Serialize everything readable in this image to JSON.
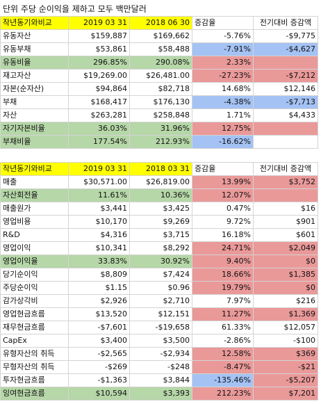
{
  "title": "단위 주당 순이익을 제하고 모두 백만달러",
  "colors": {
    "yellow": "#ffff00",
    "green": "#b6d7a8",
    "red": "#ea9999",
    "blue": "#a4c2f4"
  },
  "table1": {
    "header": [
      "작년동기와비교",
      "2019 03 31",
      "2018 06 30",
      "증감율",
      "전기대비 증감액"
    ],
    "header_fills": [
      "yellow",
      "yellow",
      "yellow",
      "",
      ""
    ],
    "rows": [
      {
        "label": "유동자산",
        "a": "$159,887",
        "b": "$169,662",
        "pct": "-5.76%",
        "diff": "-$9,775",
        "fills": [
          "",
          "",
          "",
          "",
          ""
        ]
      },
      {
        "label": "유동부채",
        "a": "$53,861",
        "b": "$58,488",
        "pct": "-7.91%",
        "diff": "-$4,627",
        "fills": [
          "",
          "",
          "",
          "blue",
          "blue"
        ]
      },
      {
        "label": "유동비율",
        "a": "296.85%",
        "b": "290.08%",
        "pct": "2.33%",
        "diff": "",
        "fills": [
          "green",
          "green",
          "green",
          "red",
          "red"
        ]
      },
      {
        "label": "재고자산",
        "a": "$19,269.00",
        "b": "$26,481.00",
        "pct": "-27.23%",
        "diff": "-$7,212",
        "fills": [
          "",
          "",
          "",
          "red",
          "red"
        ]
      },
      {
        "label": "자본(순자산)",
        "a": "$94,864",
        "b": "$82,718",
        "pct": "14.68%",
        "diff": "$12,146",
        "fills": [
          "",
          "",
          "",
          "",
          ""
        ]
      },
      {
        "label": "부채",
        "a": "$168,417",
        "b": "$176,130",
        "pct": "-4.38%",
        "diff": "-$7,713",
        "fills": [
          "",
          "",
          "",
          "blue",
          "blue"
        ]
      },
      {
        "label": "자산",
        "a": "$263,281",
        "b": "$258,848",
        "pct": "1.71%",
        "diff": "$4,433",
        "fills": [
          "",
          "",
          "",
          "",
          ""
        ]
      },
      {
        "label": "자기자본비율",
        "a": "36.03%",
        "b": "31.96%",
        "pct": "12.75%",
        "diff": "",
        "fills": [
          "green",
          "green",
          "green",
          "red",
          "red"
        ]
      },
      {
        "label": "부채비율",
        "a": "177.54%",
        "b": "212.93%",
        "pct": "-16.62%",
        "diff": "",
        "fills": [
          "green",
          "green",
          "green",
          "blue",
          ""
        ]
      }
    ]
  },
  "table2": {
    "header": [
      "작년동기와비교",
      "2019 03 31",
      "2018 03 31",
      "증감율",
      "전기대비 증감액"
    ],
    "header_fills": [
      "yellow",
      "yellow",
      "yellow",
      "",
      ""
    ],
    "rows": [
      {
        "label": "매출",
        "a": "$30,571.00",
        "b": "$26,819.00",
        "pct": "13.99%",
        "diff": "$3,752",
        "fills": [
          "",
          "",
          "",
          "red",
          "red"
        ]
      },
      {
        "label": "자산회전율",
        "a": "11.61%",
        "b": "10.36%",
        "pct": "12.07%",
        "diff": "",
        "fills": [
          "green",
          "green",
          "green",
          "red",
          "red"
        ]
      },
      {
        "label": "매출원가",
        "a": "$3,441",
        "b": "$3,425",
        "pct": "0.47%",
        "diff": "$16",
        "fills": [
          "",
          "",
          "",
          "",
          ""
        ]
      },
      {
        "label": "영업비용",
        "a": "$10,170",
        "b": "$9,269",
        "pct": "9.72%",
        "diff": "$901",
        "fills": [
          "",
          "",
          "",
          "",
          ""
        ]
      },
      {
        "label": "R&D",
        "a": "$4,316",
        "b": "$3,715",
        "pct": "16.18%",
        "diff": "$601",
        "fills": [
          "",
          "",
          "",
          "",
          ""
        ]
      },
      {
        "label": "영업이익",
        "a": "$10,341",
        "b": "$8,292",
        "pct": "24.71%",
        "diff": "$2,049",
        "fills": [
          "",
          "",
          "",
          "red",
          "red"
        ]
      },
      {
        "label": "영업이익율",
        "a": "33.83%",
        "b": "30.92%",
        "pct": "9.40%",
        "diff": "$0",
        "fills": [
          "green",
          "green",
          "green",
          "red",
          "red"
        ]
      },
      {
        "label": "당기순이익",
        "a": "$8,809",
        "b": "$7,424",
        "pct": "18.66%",
        "diff": "$1,385",
        "fills": [
          "",
          "",
          "",
          "red",
          "red"
        ]
      },
      {
        "label": "주당순이익",
        "a": "$1.15",
        "b": "$0.96",
        "pct": "19.79%",
        "diff": "$0",
        "fills": [
          "",
          "",
          "",
          "red",
          "red"
        ]
      },
      {
        "label": "감가상각비",
        "a": "$2,926",
        "b": "$2,710",
        "pct": "7.97%",
        "diff": "$216",
        "fills": [
          "",
          "",
          "",
          "",
          ""
        ]
      },
      {
        "label": "영업현금흐름",
        "a": "$13,520",
        "b": "$12,151",
        "pct": "11.27%",
        "diff": "$1,369",
        "fills": [
          "",
          "",
          "",
          "red",
          "red"
        ]
      },
      {
        "label": "재무현금흐름",
        "a": "-$7,601",
        "b": "-$19,658",
        "pct": "61.33%",
        "diff": "$12,057",
        "fills": [
          "",
          "",
          "",
          "",
          ""
        ]
      },
      {
        "label": "CapEx",
        "a": "$3,400",
        "b": "$3,500",
        "pct": "-2.86%",
        "diff": "-$100",
        "fills": [
          "",
          "",
          "",
          "",
          ""
        ]
      },
      {
        "label": "유형자산의 취득",
        "a": "-$2,565",
        "b": "-$2,934",
        "pct": "12.58%",
        "diff": "$369",
        "fills": [
          "",
          "",
          "",
          "red",
          "red"
        ]
      },
      {
        "label": "무형자산의 취득",
        "a": "-$269",
        "b": "-$248",
        "pct": "-8.47%",
        "diff": "-$21",
        "fills": [
          "",
          "",
          "",
          "red",
          "red"
        ]
      },
      {
        "label": "투자현금흐름",
        "a": "-$1,363",
        "b": "$3,844",
        "pct": "-135.46%",
        "diff": "-$5,207",
        "fills": [
          "",
          "",
          "",
          "blue",
          "red"
        ]
      },
      {
        "label": "잉여현금흐름",
        "a": "$10,594",
        "b": "$3,393",
        "pct": "212.23%",
        "diff": "$7,201",
        "fills": [
          "green",
          "green",
          "green",
          "red",
          "red"
        ]
      }
    ]
  }
}
